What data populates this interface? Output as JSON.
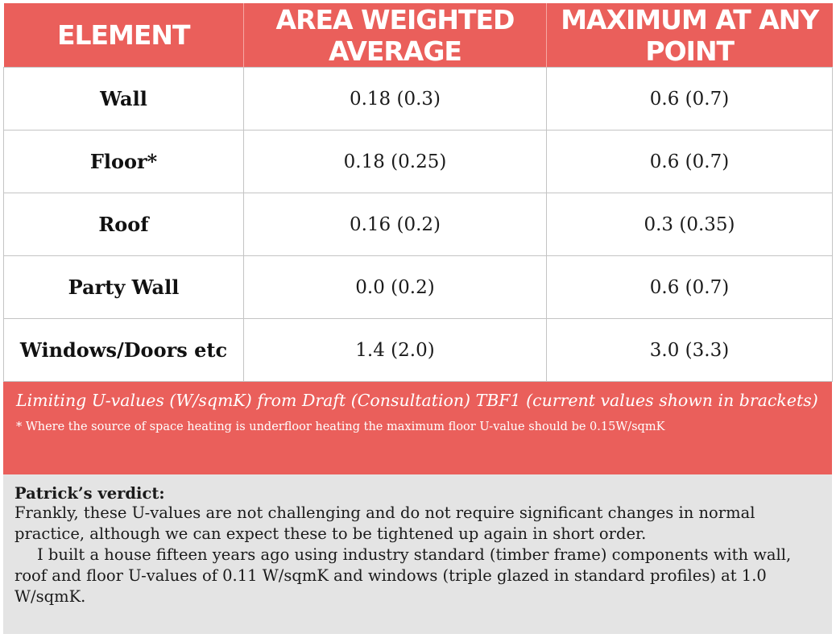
{
  "table": {
    "headers": [
      "ELEMENT",
      "AREA WEIGHTED AVERAGE",
      "MAXIMUM AT ANY POINT"
    ],
    "rows": [
      {
        "element": "Wall",
        "average": "0.18 (0.3)",
        "maximum": "0.6 (0.7)"
      },
      {
        "element": "Floor*",
        "average": "0.18 (0.25)",
        "maximum": "0.6 (0.7)"
      },
      {
        "element": "Roof",
        "average": "0.16 (0.2)",
        "maximum": "0.3 (0.35)"
      },
      {
        "element": "Party Wall",
        "average": "0.0 (0.2)",
        "maximum": "0.6 (0.7)"
      },
      {
        "element": "Windows/Doors etc",
        "average": "1.4 (2.0)",
        "maximum": "3.0 (3.3)"
      }
    ]
  },
  "caption": "Limiting U-values (W/sqmK) from Draft (Consultation) TBF1 (current values shown in brackets)",
  "footnote": "* Where the source of space heating is underfloor heating the maximum floor U-value should be 0.15W/sqmK",
  "verdict": {
    "title": "Patrick’s verdict:",
    "paragraph1": "Frankly, these U-values are not challenging and do not require significant changes in normal practice, although we can expect these to be tightened up again in short order.",
    "paragraph2": "I built a house fifteen years ago using industry standard (timber frame) components with wall, roof and floor U-values of 0.11 W/sqmK and windows (triple glazed in standard profiles) at 1.0 W/sqmK."
  },
  "colors": {
    "accent": "#ea5f5b",
    "panel": "#e4e4e4",
    "grid": "#c4c4c4"
  }
}
